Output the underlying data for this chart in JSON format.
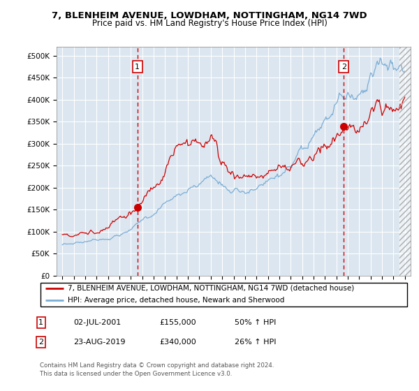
{
  "title1": "7, BLENHEIM AVENUE, LOWDHAM, NOTTINGHAM, NG14 7WD",
  "title2": "Price paid vs. HM Land Registry's House Price Index (HPI)",
  "ylim": [
    0,
    520000
  ],
  "yticks": [
    0,
    50000,
    100000,
    150000,
    200000,
    250000,
    300000,
    350000,
    400000,
    450000,
    500000
  ],
  "ytick_labels": [
    "£0",
    "£50K",
    "£100K",
    "£150K",
    "£200K",
    "£250K",
    "£300K",
    "£350K",
    "£400K",
    "£450K",
    "£500K"
  ],
  "xlim_start": 1994.5,
  "xlim_end": 2025.5,
  "sale1_x": 2001.58,
  "sale1_y": 155000,
  "sale2_x": 2019.65,
  "sale2_y": 340000,
  "legend_line1": "7, BLENHEIM AVENUE, LOWDHAM, NOTTINGHAM, NG14 7WD (detached house)",
  "legend_line2": "HPI: Average price, detached house, Newark and Sherwood",
  "table_row1": [
    "1",
    "02-JUL-2001",
    "£155,000",
    "50% ↑ HPI"
  ],
  "table_row2": [
    "2",
    "23-AUG-2019",
    "£340,000",
    "26% ↑ HPI"
  ],
  "footer": "Contains HM Land Registry data © Crown copyright and database right 2024.\nThis data is licensed under the Open Government Licence v3.0.",
  "red_color": "#cc0000",
  "blue_color": "#7aadd6",
  "plot_bg": "#dce6f0"
}
